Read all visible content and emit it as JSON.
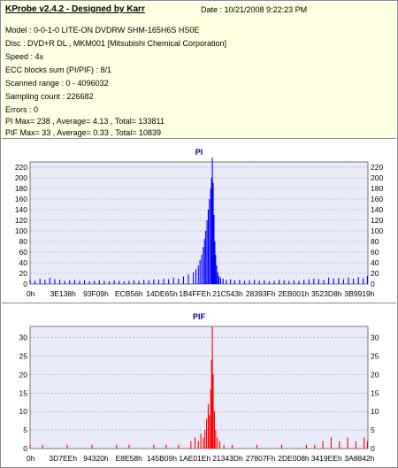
{
  "app": {
    "title": "KProbe v2.4.2 - Designed by Karr",
    "date": "Date : 10/21/2008 9:22:23 PM"
  },
  "info_lines": [
    "Model : 0-0-1-0 LITE-ON DVDRW SHM-165H6S HS0E",
    "Disc : DVD+R DL , MKM001 [Mitsubishi Chemical Corporation]",
    "Speed : 4x",
    "ECC blocks sum (PI/PIF) : 8/1",
    "Scanned range : 0 - 4096032",
    "Sampling count : 226682",
    "Errors : 0",
    "PI Max= 238 , Average= 4.13 , Total= 133811",
    "PIF Max= 33 , Average= 0.33 , Total= 10839"
  ],
  "colors": {
    "info_bg": "#ffffe1",
    "plot_bg": "#e9ebfb",
    "pi_series": "#0000ff",
    "pif_series": "#ff0000",
    "title_color": "#00008b"
  },
  "chart_data": [
    {
      "type": "bar",
      "title": "PI",
      "xlabel": "",
      "ylabel": "",
      "ylim": [
        0,
        230
      ],
      "yticks": [
        0,
        20,
        40,
        60,
        80,
        100,
        120,
        140,
        160,
        180,
        200,
        220
      ],
      "x_tick_labels": [
        "0h",
        "3E138h",
        "93F09h",
        "ECB56h",
        "14DE65h",
        "1B4FFEh",
        "21C543h",
        "28393Fh",
        "2EB001h",
        "3523D8h",
        "3B9919h"
      ],
      "x_range": [
        0,
        4096032
      ],
      "grid": true,
      "series": [
        {
          "name": "PI",
          "x": [
            0,
            60000,
            120000,
            180000,
            240000,
            300000,
            360000,
            420000,
            480000,
            540000,
            600000,
            660000,
            720000,
            780000,
            840000,
            900000,
            960000,
            1020000,
            1080000,
            1140000,
            1200000,
            1260000,
            1320000,
            1380000,
            1440000,
            1500000,
            1560000,
            1620000,
            1680000,
            1740000,
            1800000,
            1860000,
            1920000,
            1980000,
            2010000,
            2040000,
            2060000,
            2080000,
            2100000,
            2115000,
            2130000,
            2145000,
            2160000,
            2175000,
            2190000,
            2200000,
            2210000,
            2220000,
            2230000,
            2240000,
            2250000,
            2262000,
            2275000,
            2290000,
            2310000,
            2340000,
            2380000,
            2430000,
            2480000,
            2540000,
            2600000,
            2660000,
            2720000,
            2780000,
            2840000,
            2900000,
            2960000,
            3020000,
            3080000,
            3140000,
            3200000,
            3260000,
            3320000,
            3380000,
            3440000,
            3500000,
            3560000,
            3620000,
            3680000,
            3740000,
            3800000,
            3860000,
            3920000,
            3980000,
            4040000,
            4090000
          ],
          "values": [
            8,
            6,
            10,
            8,
            12,
            9,
            8,
            6,
            7,
            8,
            6,
            7,
            5,
            6,
            7,
            6,
            5,
            7,
            6,
            5,
            6,
            7,
            6,
            8,
            7,
            9,
            8,
            10,
            9,
            12,
            10,
            14,
            18,
            22,
            28,
            35,
            45,
            55,
            70,
            85,
            100,
            120,
            140,
            160,
            180,
            200,
            238,
            190,
            130,
            80,
            55,
            35,
            22,
            15,
            12,
            10,
            8,
            9,
            7,
            8,
            6,
            7,
            8,
            6,
            7,
            5,
            6,
            8,
            7,
            6,
            7,
            6,
            8,
            9,
            10,
            9,
            8,
            12,
            10,
            11,
            9,
            12,
            10,
            13,
            11,
            15
          ]
        }
      ]
    },
    {
      "type": "bar",
      "title": "PIF",
      "xlabel": "",
      "ylabel": "",
      "ylim": [
        0,
        33
      ],
      "yticks": [
        0,
        5,
        10,
        15,
        20,
        25,
        30
      ],
      "x_tick_labels": [
        "0h",
        "3D7EEh",
        "94320h",
        "E8E58h",
        "145B09h",
        "1AE01Eh",
        "21343Dh",
        "27807Fh",
        "2DE008h",
        "3419EEh",
        "3A8842h"
      ],
      "x_range": [
        0,
        4096032
      ],
      "grid": true,
      "series": [
        {
          "name": "PIF",
          "x": [
            0,
            60000,
            150000,
            300000,
            450000,
            600000,
            750000,
            900000,
            1050000,
            1200000,
            1350000,
            1500000,
            1650000,
            1800000,
            1950000,
            2000000,
            2040000,
            2070000,
            2100000,
            2120000,
            2140000,
            2160000,
            2175000,
            2190000,
            2200000,
            2210000,
            2220000,
            2235000,
            2250000,
            2270000,
            2300000,
            2350000,
            2450000,
            2600000,
            2750000,
            2900000,
            3050000,
            3200000,
            3350000,
            3450000,
            3550000,
            3650000,
            3750000,
            3850000,
            3950000,
            4050000,
            4090000
          ],
          "values": [
            1,
            0,
            1,
            0,
            1,
            0,
            1,
            0,
            1,
            1,
            0,
            1,
            1,
            1,
            2,
            3,
            2,
            4,
            3,
            5,
            8,
            12,
            9,
            16,
            24,
            33,
            20,
            10,
            5,
            3,
            2,
            1,
            1,
            0,
            1,
            0,
            1,
            0,
            1,
            1,
            2,
            3,
            2,
            3,
            2,
            3,
            2
          ]
        }
      ]
    }
  ]
}
